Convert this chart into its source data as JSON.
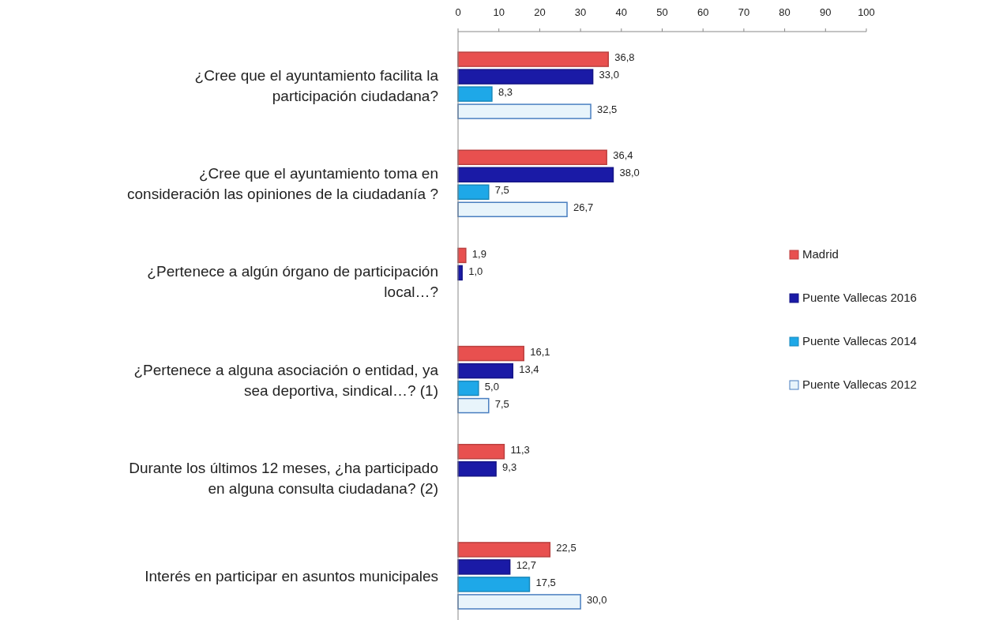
{
  "chart_data": {
    "type": "bar",
    "orientation": "horizontal",
    "categories": [
      "¿Cree que el ayuntamiento facilita la participación ciudadana?",
      "¿Cree que el ayuntamiento toma en consideración las opiniones de la ciudadanía ?",
      "¿Pertenece a algún órgano de participación local…?",
      "¿Pertenece a alguna asociación o entidad, ya sea deportiva, sindical…? (1)",
      "Durante los últimos 12 meses, ¿ha participado en alguna consulta ciudadana? (2)",
      "Interés en participar en asuntos municipales"
    ],
    "series": [
      {
        "name": "Madrid",
        "color": "#e8504f",
        "values": [
          36.8,
          36.4,
          1.9,
          16.1,
          11.3,
          22.5
        ],
        "value_labels": [
          "36,8",
          "36,4",
          "1,9",
          "16,1",
          "11,3",
          "22,5"
        ]
      },
      {
        "name": "Puente Vallecas 2016",
        "color": "#1a1aa6",
        "values": [
          33.0,
          38.0,
          1.0,
          13.4,
          9.3,
          12.7
        ],
        "value_labels": [
          "33,0",
          "38,0",
          "1,0",
          "13,4",
          "9,3",
          "12,7"
        ]
      },
      {
        "name": "Puente Vallecas 2014",
        "color": "#1ea8e8",
        "values": [
          8.3,
          7.5,
          null,
          5.0,
          null,
          17.5
        ],
        "value_labels": [
          "8,3",
          "7,5",
          null,
          "5,0",
          null,
          "17,5"
        ]
      },
      {
        "name": "Puente Vallecas 2012",
        "color": "#e8f4fb",
        "values": [
          32.5,
          26.7,
          null,
          7.5,
          null,
          30.0
        ],
        "value_labels": [
          "32,5",
          "26,7",
          null,
          "7,5",
          null,
          "30,0"
        ]
      }
    ],
    "xlim": [
      0,
      100
    ],
    "xticks": [
      0,
      10,
      20,
      30,
      40,
      50,
      60,
      70,
      80,
      90,
      100
    ],
    "legend": "right",
    "grid": false
  }
}
